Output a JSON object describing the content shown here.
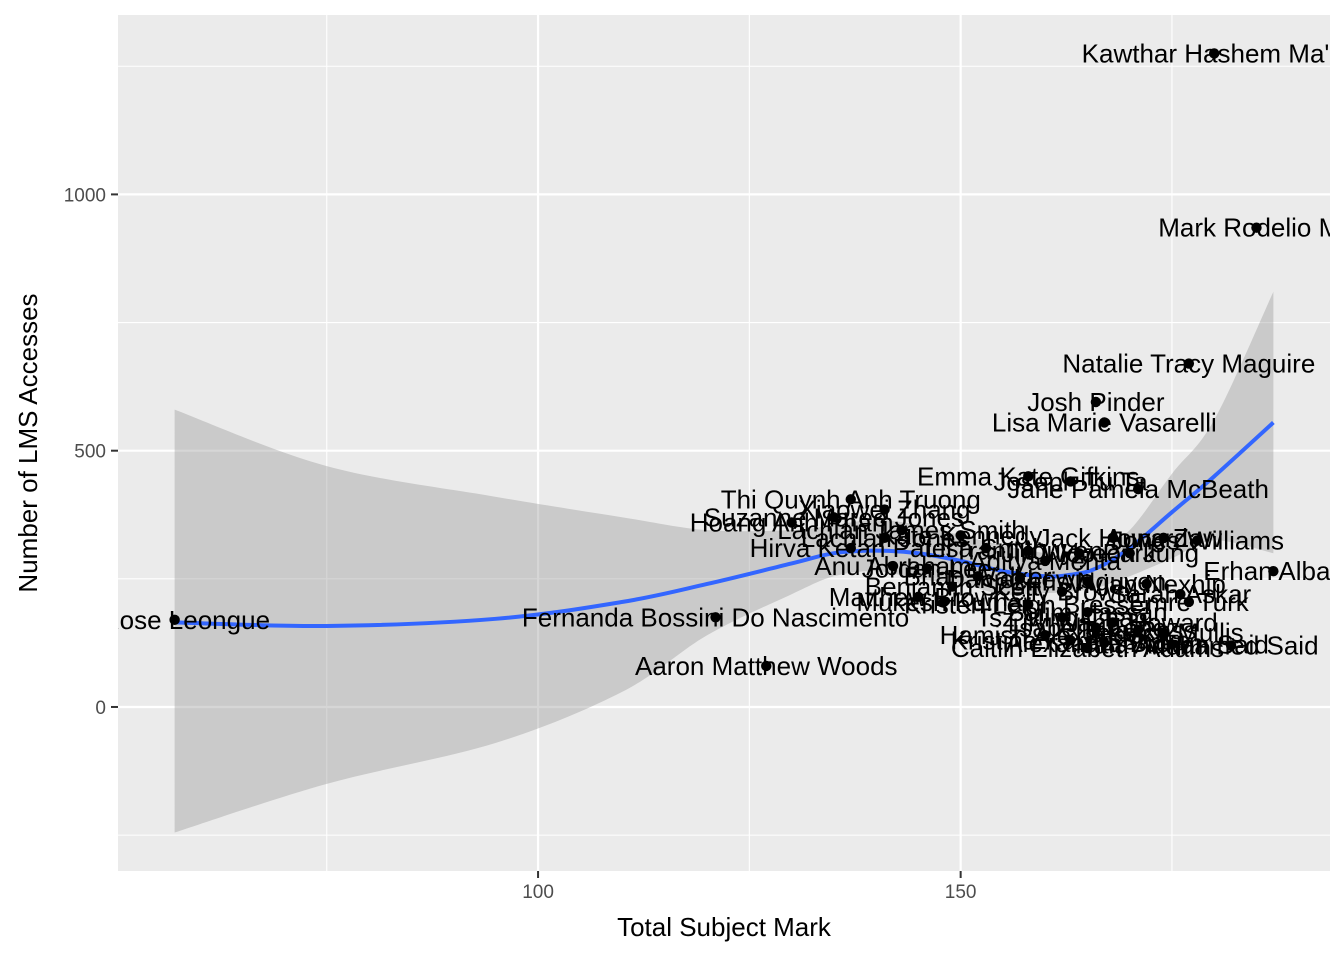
{
  "chart_data": {
    "type": "scatter",
    "xlabel": "Total Subject Mark",
    "ylabel": "Number of LMS Accesses",
    "xlim": [
      50.3,
      193.7
    ],
    "ylim": [
      -320,
      1350
    ],
    "x_ticks": [
      100,
      150
    ],
    "y_ticks": [
      0,
      500,
      1000
    ],
    "grid": true,
    "smooth": {
      "method": "loess",
      "color": "#3366FF",
      "band_color": "#999999",
      "x": [
        57,
        75,
        95,
        110,
        120,
        130,
        135,
        140,
        145,
        150,
        155,
        160,
        163,
        166,
        170,
        175,
        180,
        187
      ],
      "y": [
        165,
        158,
        172,
        205,
        240,
        280,
        300,
        305,
        300,
        285,
        265,
        255,
        258,
        270,
        310,
        380,
        450,
        555
      ],
      "lower": [
        -245,
        -150,
        -70,
        30,
        140,
        220,
        255,
        265,
        250,
        240,
        220,
        222,
        225,
        232,
        255,
        290,
        325,
        300
      ],
      "upper": [
        580,
        470,
        410,
        370,
        345,
        345,
        355,
        365,
        355,
        335,
        315,
        300,
        295,
        305,
        345,
        455,
        560,
        810
      ]
    },
    "points": [
      {
        "x": 57,
        "y": 170,
        "label": "n Rose Leongue"
      },
      {
        "x": 121,
        "y": 175,
        "label": "Fernanda Bossini Do Nascimento"
      },
      {
        "x": 127,
        "y": 80,
        "label": "Aaron Matthew Woods"
      },
      {
        "x": 180,
        "y": 1275,
        "label": "Kawthar Hashem Ma'Y"
      },
      {
        "x": 185,
        "y": 935,
        "label": "Mark Rodelio Ma"
      },
      {
        "x": 177,
        "y": 670,
        "label": "Natalie Tracy Maguire"
      },
      {
        "x": 166,
        "y": 595,
        "label": "Josh Pinder"
      },
      {
        "x": 167,
        "y": 555,
        "label": "Lisa Marie Vasarelli"
      },
      {
        "x": 158,
        "y": 450,
        "label": "Emma Kate Gifkins"
      },
      {
        "x": 163,
        "y": 440,
        "label": "Joseph Tu Ta"
      },
      {
        "x": 171,
        "y": 425,
        "label": "Jane Pamela McBeath"
      },
      {
        "x": 137,
        "y": 405,
        "label": "Thi Quynh Anh Truong"
      },
      {
        "x": 141,
        "y": 385,
        "label": "Xiaowei Zhang"
      },
      {
        "x": 135,
        "y": 370,
        "label": "Suzanne Maree Jones"
      },
      {
        "x": 130,
        "y": 360,
        "label": "Hoang Anh Pham"
      },
      {
        "x": 143,
        "y": 345,
        "label": "Lachlan James Smith"
      },
      {
        "x": 141,
        "y": 330,
        "label": "Lachlan Jones"
      },
      {
        "x": 150,
        "y": 335,
        "label": "Kate Kennedy"
      },
      {
        "x": 168,
        "y": 330,
        "label": "Jack Howard"
      },
      {
        "x": 174,
        "y": 330,
        "label": "Aung Zaw"
      },
      {
        "x": 178,
        "y": 325,
        "label": "Jones Williams"
      },
      {
        "x": 137,
        "y": 310,
        "label": "Hirva Ketan Patel"
      },
      {
        "x": 153,
        "y": 310,
        "label": "Lisa Smith"
      },
      {
        "x": 158,
        "y": 305,
        "label": "Tran Nguyen"
      },
      {
        "x": 164,
        "y": 300,
        "label": "Jin Woo Park"
      },
      {
        "x": 170,
        "y": 300,
        "label": "Hyeon Jung"
      },
      {
        "x": 160,
        "y": 285,
        "label": "Aditya Mehta"
      },
      {
        "x": 142,
        "y": 275,
        "label": "Anu Abraham"
      },
      {
        "x": 146,
        "y": 270,
        "label": "Jordan Lee"
      },
      {
        "x": 187,
        "y": 265,
        "label": "Erhan Albay"
      },
      {
        "x": 152,
        "y": 255,
        "label": "Brian Walker"
      },
      {
        "x": 157,
        "y": 250,
        "label": "Daniel Lewis"
      },
      {
        "x": 165,
        "y": 245,
        "label": "Chris Nguyen"
      },
      {
        "x": 172,
        "y": 240,
        "label": "Vivian Nexhip"
      },
      {
        "x": 149,
        "y": 235,
        "label": "Benjamin Scott"
      },
      {
        "x": 162,
        "y": 225,
        "label": "Kelly Brown"
      },
      {
        "x": 176,
        "y": 220,
        "label": "Sarah Askar"
      },
      {
        "x": 145,
        "y": 215,
        "label": "Matthew Brown"
      },
      {
        "x": 148,
        "y": 205,
        "label": "Mukesh Kumar"
      },
      {
        "x": 158,
        "y": 200,
        "label": "Kristen Leigh Bresser"
      },
      {
        "x": 177,
        "y": 205,
        "label": "Emre Turk"
      },
      {
        "x": 165,
        "y": 185,
        "label": "Salim Hassan"
      },
      {
        "x": 162,
        "y": 175,
        "label": "Tsz Ming Chan"
      },
      {
        "x": 168,
        "y": 165,
        "label": "Lily Wang Howard"
      },
      {
        "x": 166,
        "y": 155,
        "label": "Isabella Lopez"
      },
      {
        "x": 171,
        "y": 150,
        "label": "Tara Ross"
      },
      {
        "x": 174,
        "y": 145,
        "label": "Jessica Mullis"
      },
      {
        "x": 160,
        "y": 140,
        "label": "Hamish Alexander"
      },
      {
        "x": 163,
        "y": 130,
        "label": "Kristina Karen Sharp"
      },
      {
        "x": 167,
        "y": 125,
        "label": "Alexandra Brown"
      },
      {
        "x": 175,
        "y": 122,
        "label": "Hala Adnan Said"
      },
      {
        "x": 182,
        "y": 120,
        "label": "Mohamed Said"
      },
      {
        "x": 165,
        "y": 115,
        "label": "Caitlin Elizabeth Adams"
      }
    ]
  }
}
